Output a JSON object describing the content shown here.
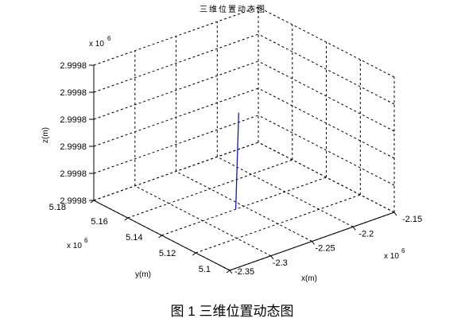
{
  "chart_data": {
    "type": "line",
    "subtype": "3d",
    "title": "三维位置动态图",
    "caption": "图 1  三维位置动态图",
    "xlabel": "x(m)",
    "ylabel": "y(m)",
    "zlabel": "z(m)",
    "x_exponent": "x 10",
    "y_exponent": "x 10",
    "z_exponent": "x 10",
    "exponent_power": "6",
    "x_ticks": [
      "-2.35",
      "-2.3",
      "-2.25",
      "-2.2",
      "-2.15"
    ],
    "y_ticks": [
      "5.1",
      "5.12",
      "5.14",
      "5.16",
      "5.18"
    ],
    "z_ticks": [
      "2.9998",
      "2.9998",
      "2.9998",
      "2.9998",
      "2.9998",
      "2.9998"
    ],
    "grid": true,
    "series": [
      {
        "color": "#1a1aa6",
        "start": {
          "tick_x": 1.8,
          "tick_y": 2.0,
          "tick_z": 0.0
        },
        "end": {
          "tick_x": 2.2,
          "tick_y": 2.4,
          "tick_z": 3.1
        }
      }
    ]
  }
}
